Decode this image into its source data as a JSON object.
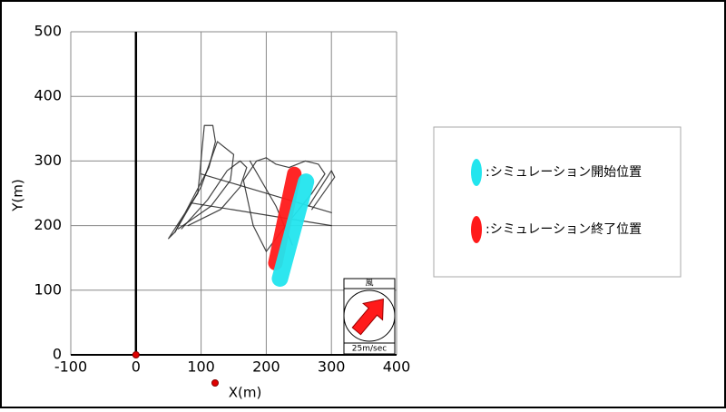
{
  "chart_data": {
    "type": "line",
    "xlabel": "X(m)",
    "ylabel": "Y(m)",
    "xlim": [
      -100,
      400
    ],
    "xticks": [
      -100,
      0,
      100,
      200,
      300,
      400
    ],
    "ylim": [
      0,
      500
    ],
    "yticks": [
      0,
      100,
      200,
      300,
      400,
      500
    ],
    "grid": true,
    "origin": {
      "x": 0,
      "y": 0,
      "color": "#e00000"
    },
    "series": [
      {
        "color": "#222222",
        "x": [
          50,
          95,
          105,
          118,
          122,
          112,
          60,
          50
        ],
        "y": [
          180,
          250,
          355,
          355,
          330,
          290,
          190,
          180
        ]
      },
      {
        "color": "#222222",
        "x": [
          60,
          100,
          125,
          150,
          145,
          115,
          65
        ],
        "y": [
          190,
          260,
          330,
          310,
          270,
          230,
          195
        ]
      },
      {
        "color": "#222222",
        "x": [
          70,
          110,
          140,
          160,
          170,
          160,
          130,
          80
        ],
        "y": [
          195,
          240,
          285,
          300,
          290,
          260,
          225,
          200
        ]
      },
      {
        "color": "#222222",
        "x": [
          165,
          185,
          200,
          215,
          235,
          260,
          280,
          290,
          270,
          230,
          200,
          180,
          165
        ],
        "y": [
          270,
          300,
          305,
          295,
          290,
          300,
          295,
          280,
          250,
          200,
          160,
          200,
          270
        ]
      },
      {
        "color": "#222222",
        "x": [
          85,
          300
        ],
        "y": [
          235,
          200
        ]
      },
      {
        "color": "#222222",
        "x": [
          100,
          300
        ],
        "y": [
          280,
          220
        ]
      },
      {
        "color": "#222222",
        "x": [
          175,
          215,
          240
        ],
        "y": [
          300,
          230,
          170
        ]
      },
      {
        "color": "#222222",
        "x": [
          265,
          300,
          305,
          270
        ],
        "y": [
          230,
          285,
          275,
          225
        ]
      },
      {
        "name": ":シミュレーション終了位置",
        "color": "#ff1a1a",
        "width": 16,
        "x": [
          214,
          243
        ],
        "y": [
          142,
          280
        ]
      },
      {
        "name": ":シミュレーション開始位置",
        "color": "#22e5ee",
        "width": 18,
        "x": [
          221,
          261
        ],
        "y": [
          118,
          268
        ]
      }
    ],
    "wind": {
      "title": "風",
      "speed": "25m/sec"
    }
  }
}
